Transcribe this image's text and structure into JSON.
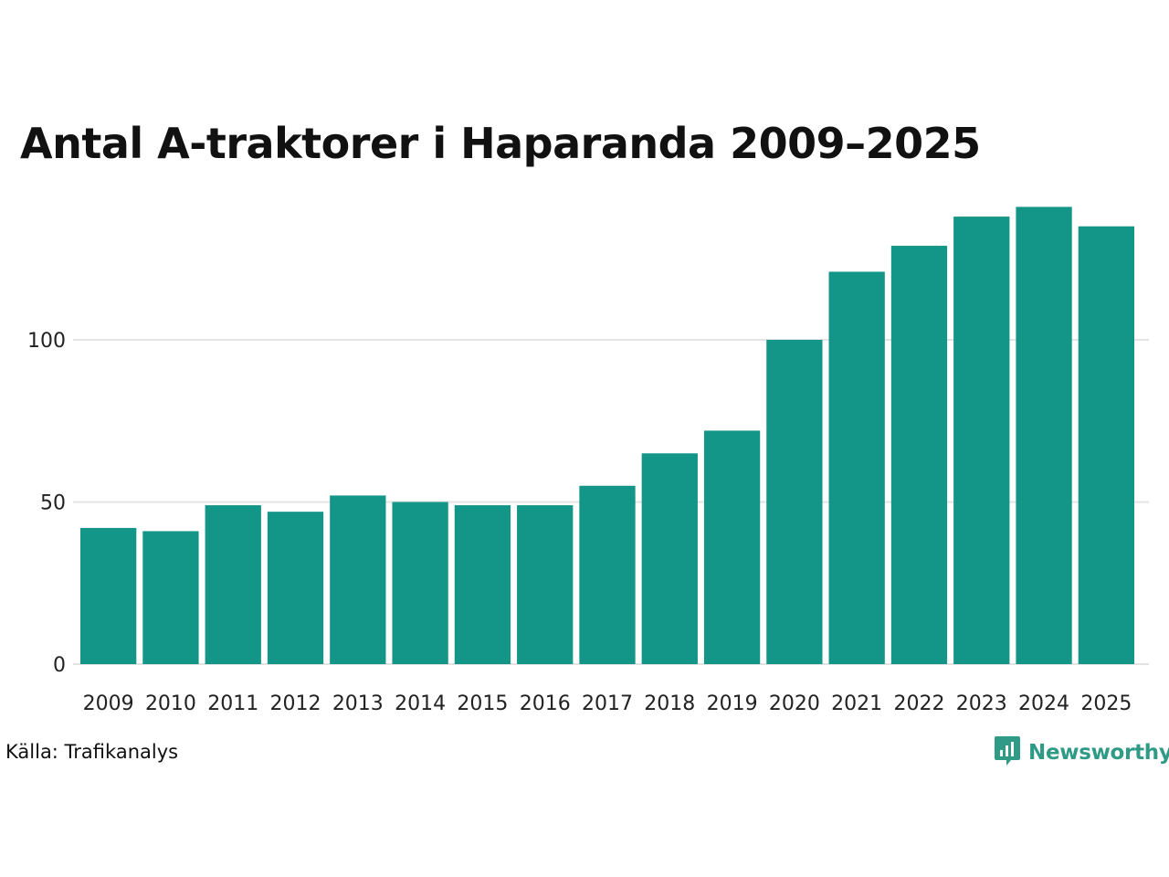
{
  "colors": {
    "bar": "#139688",
    "grid": "#e3e3e3",
    "brand": "#2f9a86"
  },
  "brand": {
    "name": "Newsworthy",
    "icon": "newsworthy-logo-icon"
  },
  "source": "Källa: Trafikanalys",
  "chart_data": {
    "type": "bar",
    "title": "Antal A-traktorer i Haparanda 2009–2025",
    "xlabel": "",
    "ylabel": "",
    "ylim": [
      0,
      141
    ],
    "yticks": [
      0,
      50,
      100
    ],
    "grid": true,
    "categories": [
      "2009",
      "2010",
      "2011",
      "2012",
      "2013",
      "2014",
      "2015",
      "2016",
      "2017",
      "2018",
      "2019",
      "2020",
      "2021",
      "2022",
      "2023",
      "2024",
      "2025"
    ],
    "values": [
      42,
      41,
      49,
      47,
      52,
      50,
      49,
      49,
      55,
      65,
      72,
      100,
      121,
      129,
      138,
      141,
      135
    ]
  }
}
